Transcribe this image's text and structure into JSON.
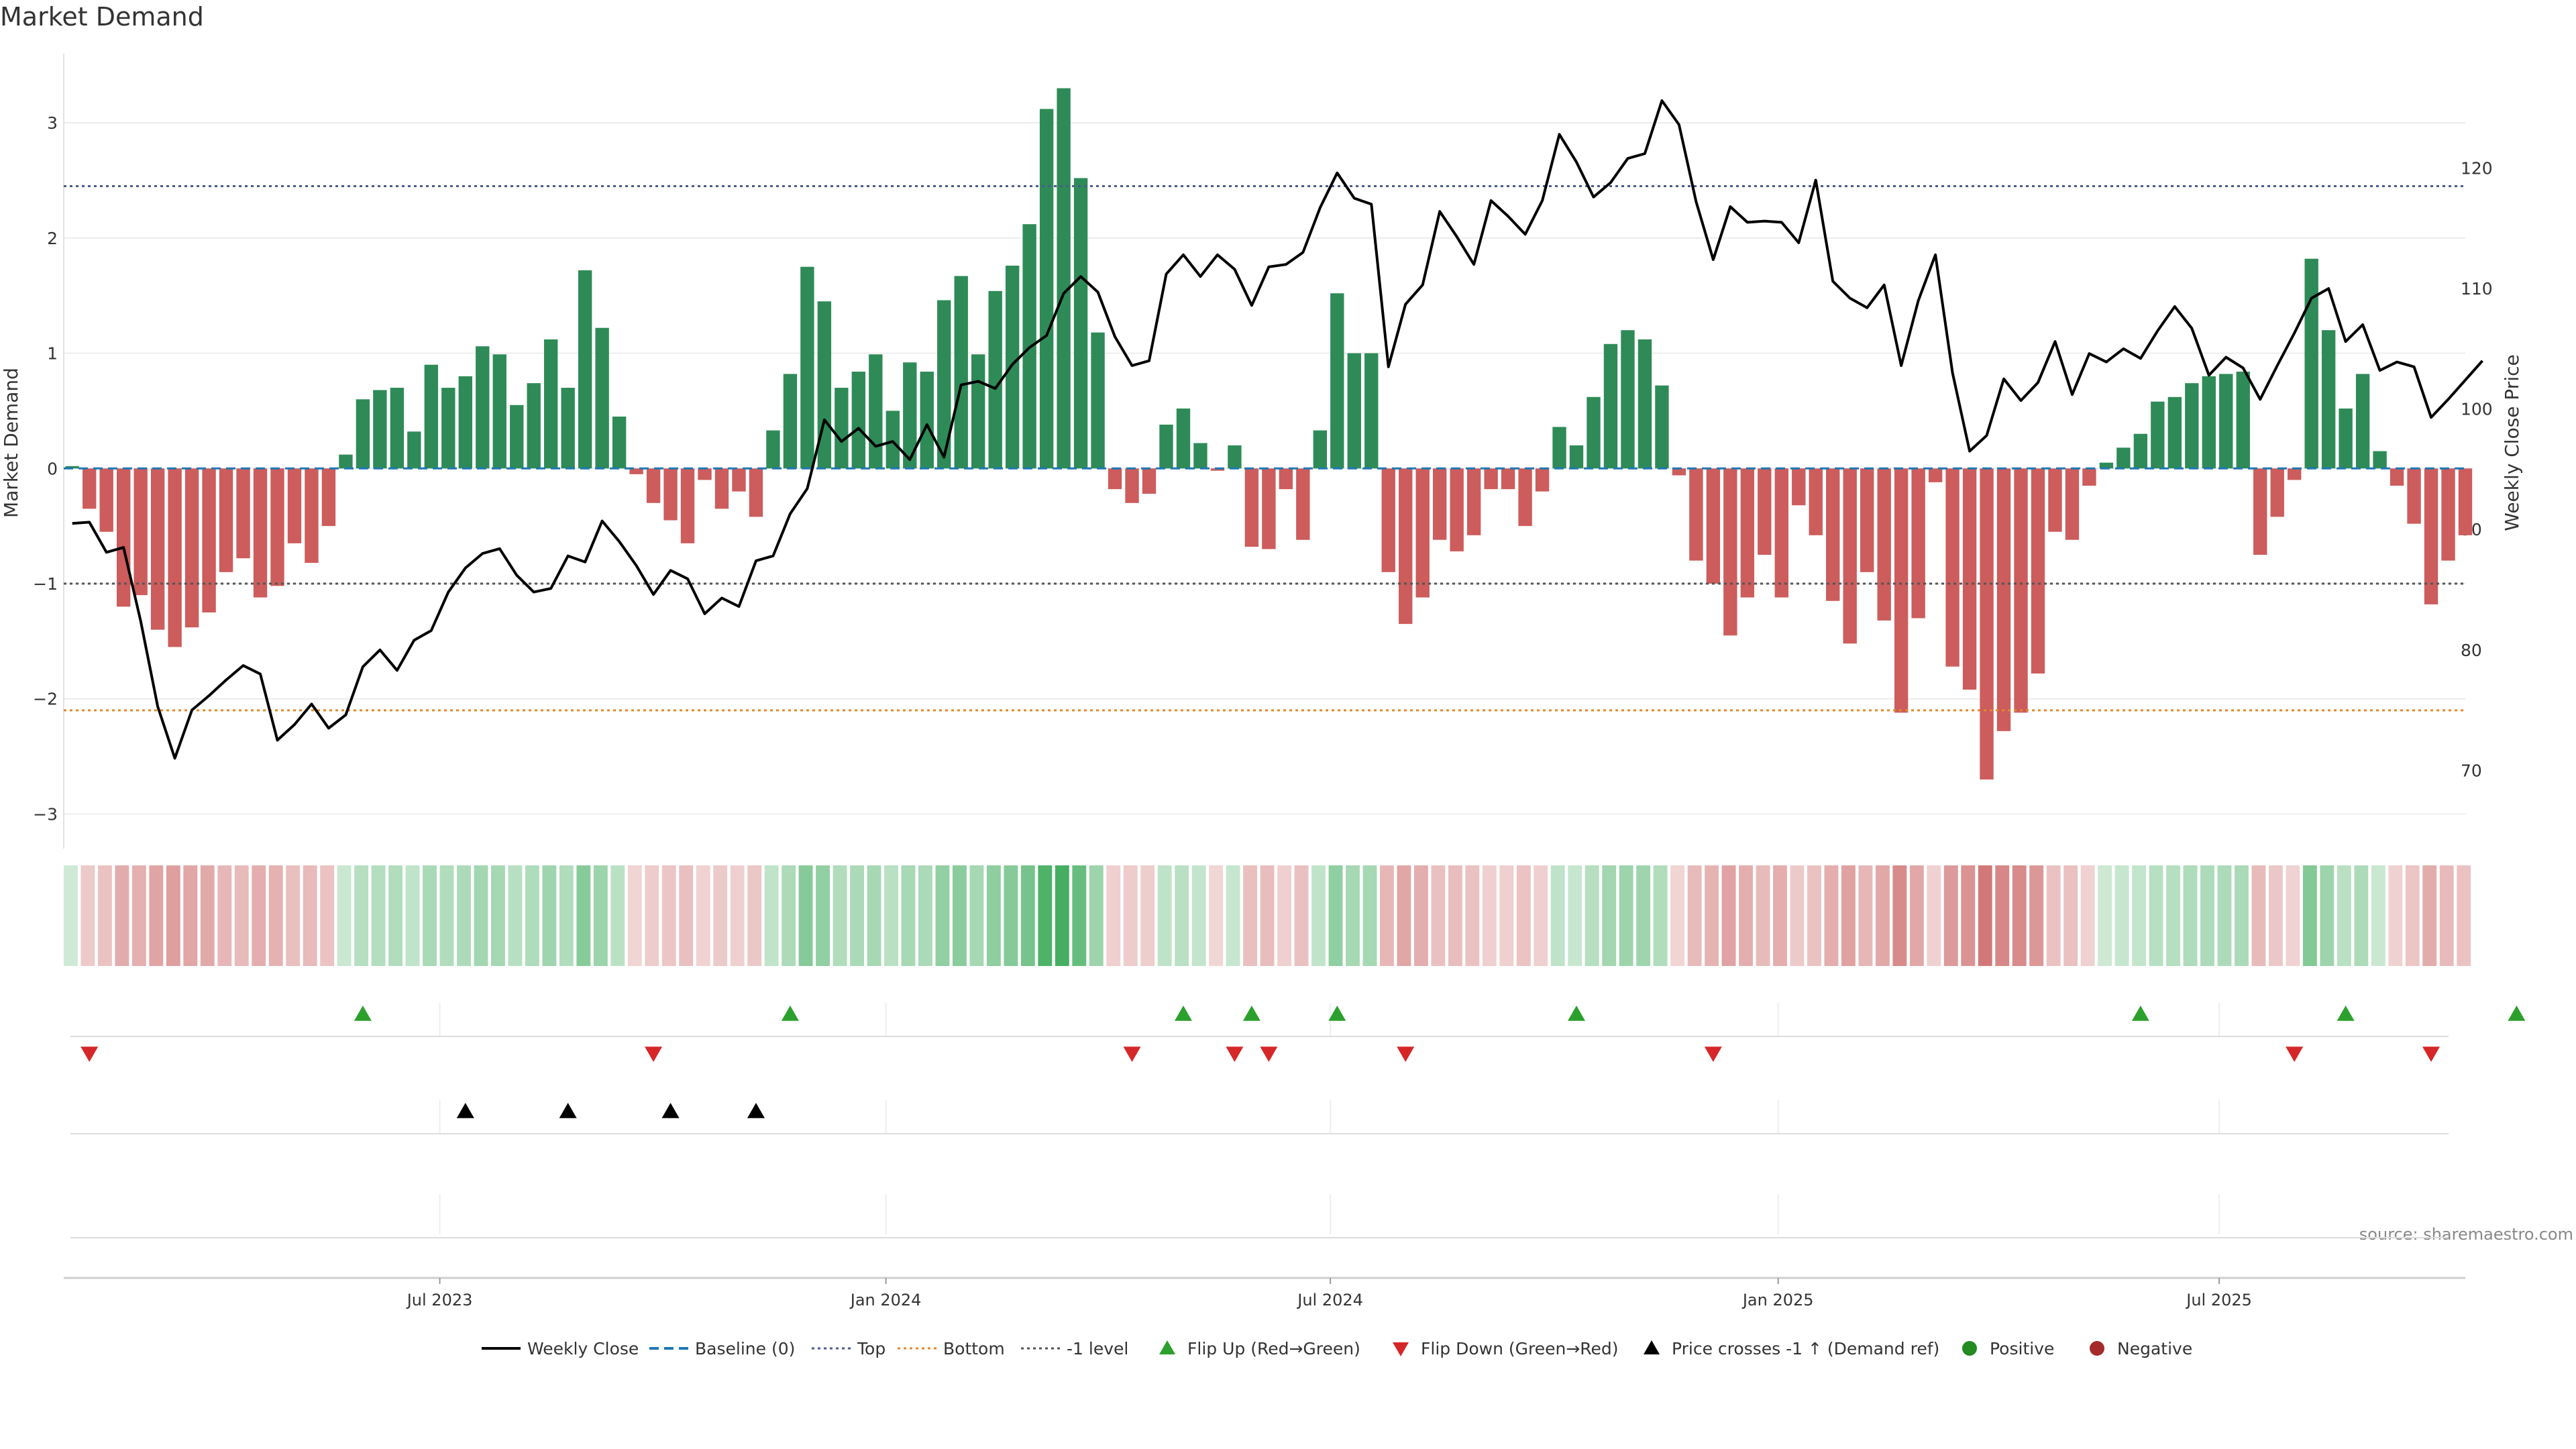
{
  "title": "Market Demand",
  "source": "source: sharemaestro.com",
  "colors": {
    "positive": "#2e8b57",
    "negative": "#cd5c5c",
    "price": "#000000",
    "baseline": "#1f77b4",
    "top": "#4a5a8c",
    "bottom": "#e08a2b",
    "minus_one": "#555555",
    "flip_up": "#2ca02c",
    "flip_down": "#d62728",
    "cross": "#000000"
  },
  "chart_data": {
    "type": "bar",
    "ylabel": "Market Demand",
    "y2label": "Weekly Close Price",
    "ylim": [
      -3.3,
      3.6
    ],
    "y2lim": [
      63.5,
      129.5
    ],
    "yticks": [
      -3,
      -2,
      -1,
      0,
      1,
      2,
      3
    ],
    "yticklabels": [
      "−3",
      "−2",
      "−1",
      "0",
      "1",
      "2",
      "3"
    ],
    "y2ticks": [
      70,
      80,
      90,
      100,
      110,
      120
    ],
    "xtick_labels": [
      "Jul 2023",
      "Jan 2024",
      "Jul 2024",
      "Jan 2025",
      "Jul 2025"
    ],
    "xtick_positions": [
      21.5,
      47.6,
      73.6,
      99.8,
      125.6
    ],
    "reference_lines": {
      "top": 2.45,
      "bottom": -2.1,
      "minus_one": -1.0,
      "baseline": 0
    },
    "demand": [
      0.02,
      -0.35,
      -0.55,
      -1.2,
      -1.1,
      -1.4,
      -1.55,
      -1.38,
      -1.25,
      -0.9,
      -0.78,
      -1.12,
      -1.02,
      -0.65,
      -0.82,
      -0.5,
      0.12,
      0.6,
      0.68,
      0.7,
      0.32,
      0.9,
      0.7,
      0.8,
      1.06,
      0.99,
      0.55,
      0.74,
      1.12,
      0.7,
      1.72,
      1.22,
      0.45,
      -0.05,
      -0.3,
      -0.45,
      -0.65,
      -0.1,
      -0.35,
      -0.2,
      -0.42,
      0.33,
      0.82,
      1.75,
      1.45,
      0.7,
      0.84,
      0.99,
      0.5,
      0.92,
      0.84,
      1.46,
      1.67,
      0.99,
      1.54,
      1.76,
      2.12,
      3.12,
      3.3,
      2.52,
      1.18,
      -0.18,
      -0.3,
      -0.22,
      0.38,
      0.52,
      0.22,
      -0.02,
      0.2,
      -0.68,
      -0.7,
      -0.18,
      -0.62,
      0.33,
      1.52,
      1.0,
      1.0,
      -0.9,
      -1.35,
      -1.12,
      -0.62,
      -0.72,
      -0.58,
      -0.18,
      -0.18,
      -0.5,
      -0.2,
      0.36,
      0.2,
      0.62,
      1.08,
      1.2,
      1.12,
      0.72,
      -0.06,
      -0.8,
      -1.0,
      -1.45,
      -1.12,
      -0.75,
      -1.12,
      -0.32,
      -0.58,
      -1.15,
      -1.52,
      -0.9,
      -1.32,
      -2.12,
      -1.3,
      -0.12,
      -1.72,
      -1.92,
      -2.7,
      -2.28,
      -2.12,
      -1.78,
      -0.55,
      -0.62,
      -0.15,
      0.05,
      0.18,
      0.3,
      0.58,
      0.62,
      0.74,
      0.8,
      0.82,
      0.84,
      -0.75,
      -0.42,
      -0.1,
      1.82,
      1.2,
      0.52,
      0.82,
      0.15,
      -0.15,
      -0.48,
      -1.18,
      -0.8,
      -0.58
    ],
    "price": [
      90.5,
      90.6,
      88.1,
      88.5,
      82.4,
      75.3,
      71.0,
      75.0,
      76.2,
      77.5,
      78.7,
      78.0,
      72.5,
      73.8,
      75.5,
      73.5,
      74.6,
      78.6,
      80.0,
      78.3,
      80.8,
      81.6,
      84.8,
      86.8,
      88.0,
      88.4,
      86.2,
      84.8,
      85.1,
      87.8,
      87.3,
      90.7,
      89.0,
      87.0,
      84.6,
      86.6,
      85.9,
      83.0,
      84.3,
      83.6,
      87.4,
      87.8,
      91.3,
      93.4,
      99.1,
      97.3,
      98.4,
      96.9,
      97.3,
      95.8,
      98.7,
      96.0,
      102.0,
      102.3,
      101.7,
      103.7,
      105.1,
      106.1,
      109.6,
      111.0,
      109.7,
      106.0,
      103.6,
      104.0,
      111.2,
      112.8,
      111.0,
      112.8,
      111.6,
      108.6,
      111.8,
      112.0,
      113.0,
      116.7,
      119.6,
      117.5,
      117.0,
      103.5,
      108.7,
      110.3,
      116.4,
      114.3,
      112.0,
      117.3,
      116.0,
      114.5,
      117.3,
      122.8,
      120.5,
      117.6,
      118.8,
      120.8,
      121.2,
      125.6,
      123.6,
      117.2,
      112.4,
      116.8,
      115.5,
      115.6,
      115.5,
      113.8,
      119.0,
      110.6,
      109.2,
      108.4,
      110.3,
      103.6,
      109.0,
      112.8,
      103.0,
      96.5,
      97.8,
      102.5,
      100.7,
      102.2,
      105.6,
      101.2,
      104.6,
      103.9,
      105.0,
      104.2,
      106.5,
      108.5,
      106.7,
      102.8,
      104.3,
      103.4,
      100.8,
      103.6,
      106.3,
      109.2,
      110.0,
      105.6,
      107.0,
      103.2,
      103.9,
      103.5,
      99.3,
      100.8,
      102.4,
      104.0
    ],
    "flip_up_indices": [
      17,
      42,
      65,
      69,
      74,
      88,
      121,
      133,
      143
    ],
    "flip_down_indices": [
      1,
      34,
      62,
      68,
      70,
      78,
      96,
      130,
      138
    ],
    "price_cross_indices": [
      23,
      29,
      35,
      40
    ],
    "legend": {
      "entries": [
        "Weekly Close",
        "Baseline (0)",
        "Top",
        "Bottom",
        "-1 level",
        "Flip Up (Red→Green)",
        "Flip Down (Green→Red)",
        "Price crosses -1 ↑ (Demand ref)",
        "Positive",
        "Negative"
      ],
      "placement": "bottom"
    }
  }
}
